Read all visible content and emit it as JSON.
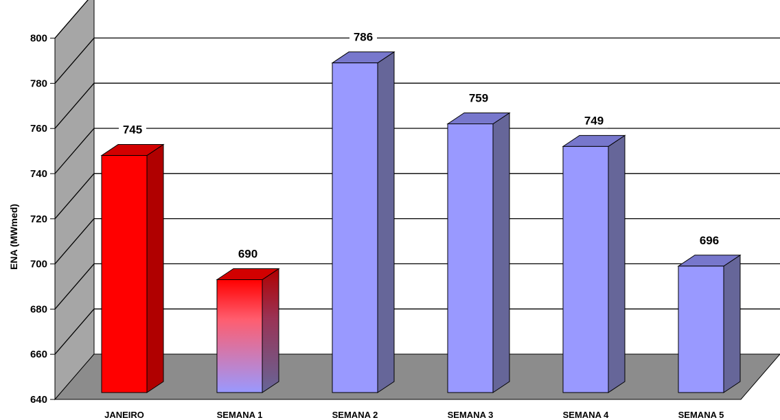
{
  "chart_data": {
    "type": "bar",
    "title": "",
    "xlabel": "",
    "ylabel": "ENA (MWmed)",
    "ylim": [
      640,
      800
    ],
    "yticks": [
      640,
      660,
      680,
      700,
      720,
      740,
      760,
      780,
      800
    ],
    "categories": [
      "JANEIRO",
      "SEMANA 1",
      "SEMANA 2",
      "SEMANA 3",
      "SEMANA 4",
      "SEMANA 5"
    ],
    "values": [
      745,
      690,
      786,
      759,
      749,
      696
    ],
    "data_labels": [
      "745",
      "690",
      "786",
      "759",
      "749",
      "696"
    ],
    "grid": true,
    "legend": "none",
    "style": "3d-column",
    "colors": {
      "red_front": "#ff0000",
      "red_side": "#b00000",
      "red_top": "#d20000",
      "blue_front": "#9999ff",
      "blue_side": "#666699",
      "blue_top": "#7777cc",
      "floor": "#8c8c8c",
      "wall_left": "#a6a6a6"
    },
    "bar_fills": [
      "red",
      "red-to-blue-gradient",
      "blue",
      "blue",
      "blue",
      "blue"
    ]
  }
}
